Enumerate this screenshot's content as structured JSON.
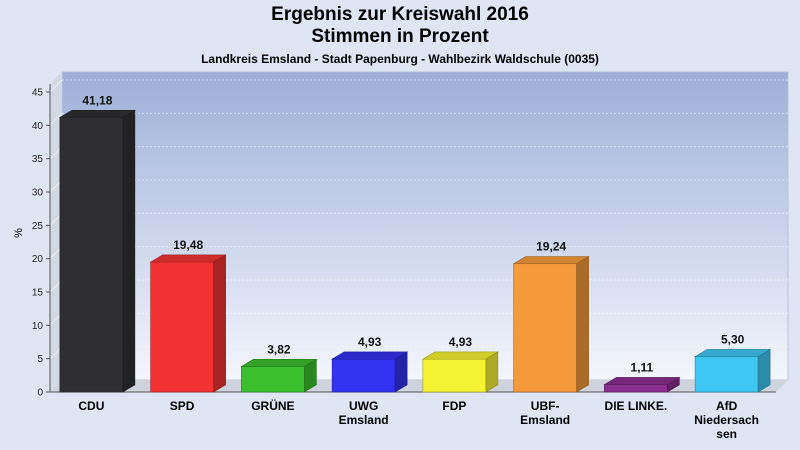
{
  "header": {
    "title_line1": "Ergebnis zur Kreiswahl 2016",
    "title_line2": "Stimmen in Prozent",
    "subtitle": "Landkreis Emsland - Stadt Papenburg - Wahlbezirk Waldschule (0035)"
  },
  "chart_data": {
    "type": "bar",
    "title": "Ergebnis zur Kreiswahl 2016 Stimmen in Prozent",
    "subtitle": "Landkreis Emsland - Stadt Papenburg - Wahlbezirk Waldschule (0035)",
    "ylabel": "%",
    "xlabel": "",
    "ylim": [
      0,
      48
    ],
    "yticks": [
      0,
      5,
      10,
      15,
      20,
      25,
      30,
      35,
      40,
      45
    ],
    "grid": true,
    "categories": [
      [
        "CDU"
      ],
      [
        "SPD"
      ],
      [
        "GRÜNE"
      ],
      [
        "UWG",
        "Emsland"
      ],
      [
        "FDP"
      ],
      [
        "UBF-",
        "Emsland"
      ],
      [
        "DIE LINKE."
      ],
      [
        "AfD",
        "Niedersach",
        "sen"
      ]
    ],
    "values": [
      41.18,
      19.48,
      3.82,
      4.93,
      4.93,
      19.24,
      1.11,
      5.3
    ],
    "value_labels": [
      "41,18",
      "19,48",
      "3,82",
      "4,93",
      "4,93",
      "19,24",
      "1,11",
      "5,30"
    ],
    "colors": [
      "#2f2f33",
      "#f23232",
      "#3cbf2d",
      "#3232f0",
      "#f6f234",
      "#f59a3a",
      "#8a2e8e",
      "#3ec7f2"
    ]
  }
}
